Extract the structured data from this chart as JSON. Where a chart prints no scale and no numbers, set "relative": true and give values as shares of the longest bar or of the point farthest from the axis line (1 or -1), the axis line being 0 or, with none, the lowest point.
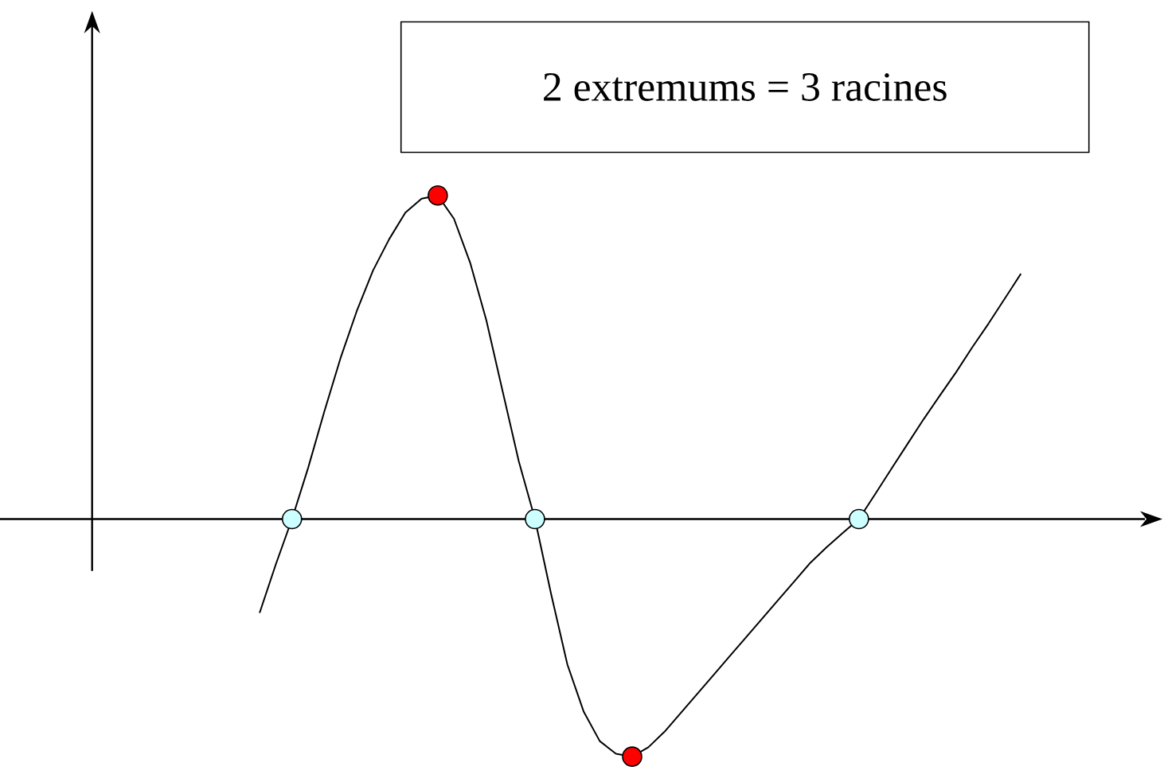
{
  "chart_data": {
    "type": "line",
    "relative": true,
    "annotations": [
      "2 extremums = 3 racines"
    ],
    "categories": [
      null,
      null,
      null,
      null,
      null,
      null,
      null,
      null,
      null,
      null,
      null,
      null,
      null,
      null,
      null,
      null,
      null,
      null,
      null,
      null,
      null,
      null,
      null,
      null,
      null,
      null,
      null,
      null,
      null,
      null,
      null,
      null,
      null,
      null,
      null,
      null,
      null,
      null,
      null,
      null,
      null,
      null,
      null,
      null,
      null,
      null,
      null,
      null
    ],
    "series": [
      {
        "color": "#000000",
        "values": [
          -0.29,
          -0.14,
          0,
          0.159,
          0.333,
          0.498,
          0.643,
          0.768,
          0.865,
          0.947,
          0.99,
          1,
          0.928,
          0.792,
          0.614,
          0.396,
          0.179,
          0,
          -0.232,
          -0.449,
          -0.594,
          -0.686,
          -0.725,
          -0.734,
          -0.705,
          -0.657,
          -0.599,
          -0.541,
          -0.483,
          -0.425,
          -0.367,
          -0.309,
          -0.251,
          -0.193,
          -0.135,
          -0.087,
          -0.043,
          0,
          0.077,
          0.155,
          0.232,
          0.309,
          0.382,
          0.454,
          0.531,
          0.604,
          0.681,
          0.758
        ]
      }
    ]
  }
}
